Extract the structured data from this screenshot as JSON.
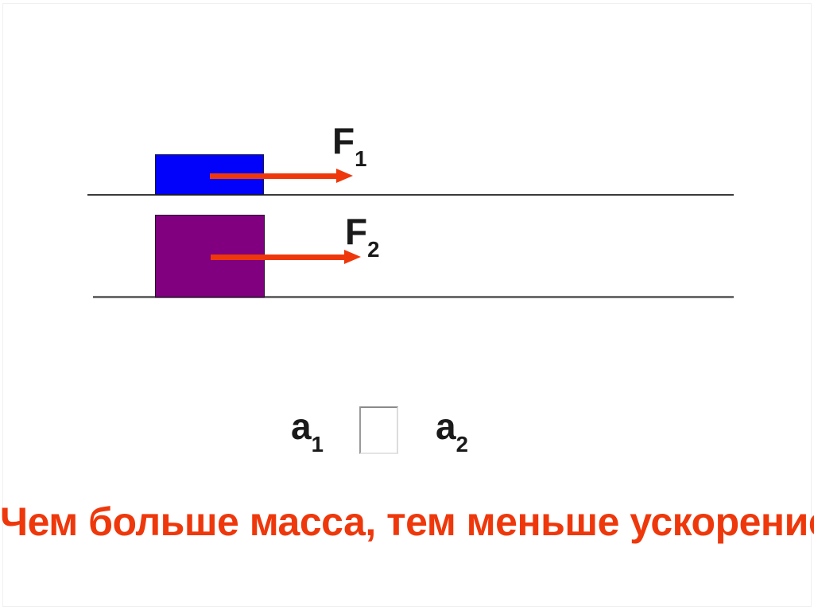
{
  "force1": {
    "base": "F",
    "sub": "1"
  },
  "force2": {
    "base": "F",
    "sub": "2"
  },
  "accel1": {
    "base": "a",
    "sub": "1"
  },
  "accel2": {
    "base": "a",
    "sub": "2"
  },
  "answer_box": {
    "value": ""
  },
  "conclusion": "Чем больше масса, тем меньше ускорение.",
  "colors": {
    "accent_red": "#ee380c",
    "block1_blue": "#0202fb",
    "block2_purple": "#800080"
  }
}
